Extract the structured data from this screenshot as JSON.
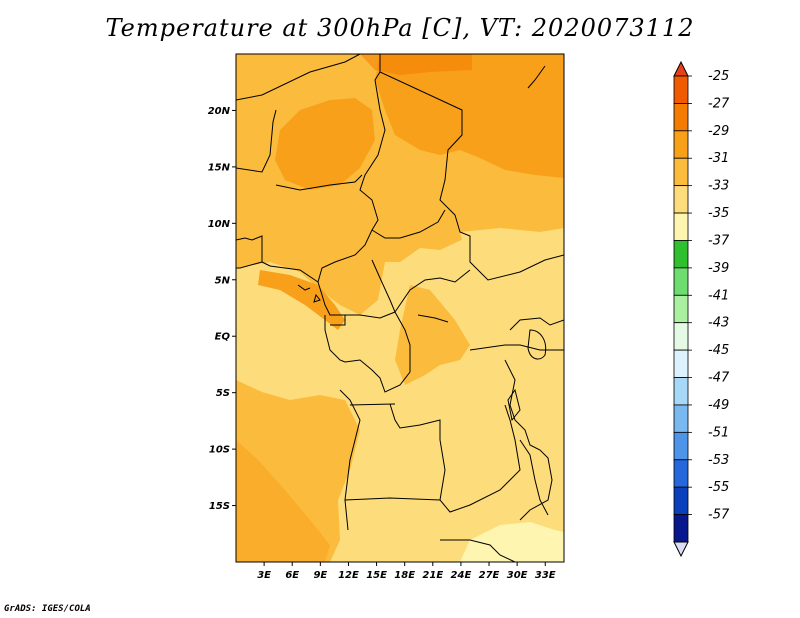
{
  "title": "Temperature at 300hPa [C], VT: 2020073112",
  "credit": "GrADS: IGES/COLA",
  "map": {
    "lon_range": [
      0,
      35
    ],
    "lat_range": [
      -20,
      25
    ],
    "y_ticks": [
      {
        "lat": 20,
        "label": "20N"
      },
      {
        "lat": 15,
        "label": "15N"
      },
      {
        "lat": 10,
        "label": "10N"
      },
      {
        "lat": 5,
        "label": "5N"
      },
      {
        "lat": 0,
        "label": "EQ"
      },
      {
        "lat": -5,
        "label": "5S"
      },
      {
        "lat": -10,
        "label": "10S"
      },
      {
        "lat": -15,
        "label": "15S"
      }
    ],
    "x_ticks": [
      {
        "lon": 3,
        "label": "3E"
      },
      {
        "lon": 6,
        "label": "6E"
      },
      {
        "lon": 9,
        "label": "9E"
      },
      {
        "lon": 12,
        "label": "12E"
      },
      {
        "lon": 15,
        "label": "15E"
      },
      {
        "lon": 18,
        "label": "18E"
      },
      {
        "lon": 21,
        "label": "21E"
      },
      {
        "lon": 24,
        "label": "24E"
      },
      {
        "lon": 27,
        "label": "27E"
      },
      {
        "lon": 30,
        "label": "30E"
      },
      {
        "lon": 33,
        "label": "33E"
      }
    ]
  },
  "colorbar": {
    "labels": [
      "-25",
      "-27",
      "-29",
      "-31",
      "-33",
      "-35",
      "-37",
      "-39",
      "-41",
      "-43",
      "-45",
      "-47",
      "-49",
      "-51",
      "-53",
      "-55",
      "-57"
    ],
    "colors": [
      "#f05a00",
      "#f47c00",
      "#f8a01a",
      "#fbbc3e",
      "#fddc7c",
      "#fef5b0",
      "#2fbf2f",
      "#6edc6e",
      "#aaf0a0",
      "#e4fae4",
      "#dcf2fc",
      "#a8d8f8",
      "#7ab8f0",
      "#4e94e8",
      "#2468dc",
      "#0a40bc",
      "#08188c"
    ],
    "top_color": "#e84018",
    "bottom_color": "#dcdcf4"
  }
}
